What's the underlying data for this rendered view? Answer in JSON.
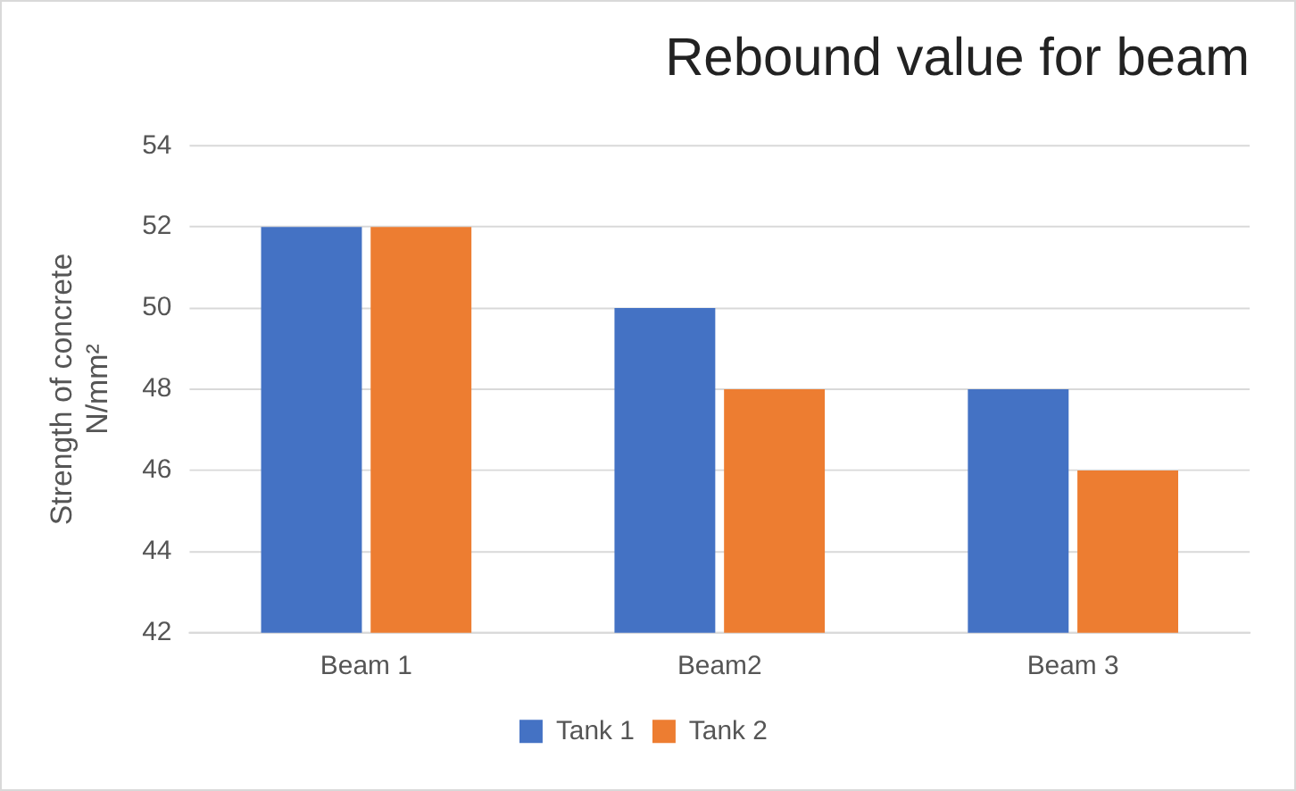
{
  "chart_data": {
    "type": "bar",
    "title": "Rebound value for beam",
    "ylabel": "Strength of concrete\nN/mm²",
    "categories": [
      "Beam 1",
      "Beam2",
      "Beam 3"
    ],
    "series": [
      {
        "name": "Tank 1",
        "color": "#4472c4",
        "values": [
          52,
          50,
          48
        ]
      },
      {
        "name": "Tank 2",
        "color": "#ed7d31",
        "values": [
          52,
          48,
          46
        ]
      }
    ],
    "ylim": [
      42,
      54
    ],
    "yticks": [
      42,
      44,
      46,
      48,
      50,
      52,
      54
    ],
    "grid": "y",
    "legend": "bottom"
  }
}
